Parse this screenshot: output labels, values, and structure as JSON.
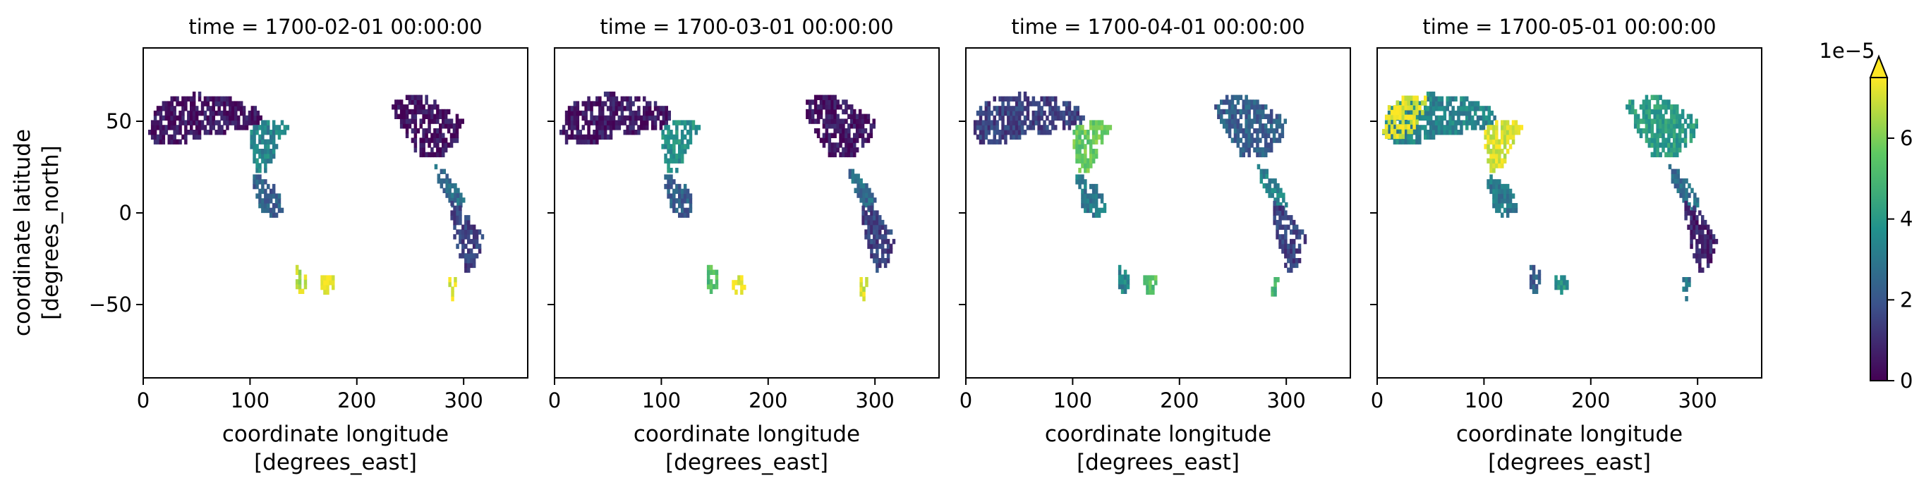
{
  "chart_data": {
    "type": "heatmap",
    "colormap": [
      "#440154",
      "#3b528b",
      "#21918c",
      "#5ec962",
      "#fde725"
    ],
    "panels": [
      {
        "title": "time = 1700-02-01 00:00:00",
        "regions": [
          {
            "name": "europe-asia",
            "level": 0.06
          },
          {
            "name": "north-america",
            "level": 0.05
          },
          {
            "name": "east-asia",
            "level": 0.45
          },
          {
            "name": "south-asia",
            "level": 0.3
          },
          {
            "name": "central-america",
            "level": 0.35
          },
          {
            "name": "south-america",
            "level": 0.2
          },
          {
            "name": "australia",
            "level": 0.9
          },
          {
            "name": "new-zealand",
            "level": 1.0
          },
          {
            "name": "patagonia",
            "level": 0.95
          }
        ]
      },
      {
        "title": "time = 1700-03-01 00:00:00",
        "regions": [
          {
            "name": "europe-asia",
            "level": 0.07
          },
          {
            "name": "north-america",
            "level": 0.06
          },
          {
            "name": "east-asia",
            "level": 0.5
          },
          {
            "name": "south-asia",
            "level": 0.3
          },
          {
            "name": "central-america",
            "level": 0.35
          },
          {
            "name": "south-america",
            "level": 0.2
          },
          {
            "name": "australia",
            "level": 0.7
          },
          {
            "name": "new-zealand",
            "level": 0.97
          },
          {
            "name": "patagonia",
            "level": 0.92
          }
        ]
      },
      {
        "title": "time = 1700-04-01 00:00:00",
        "regions": [
          {
            "name": "europe-asia",
            "level": 0.2
          },
          {
            "name": "north-america",
            "level": 0.3
          },
          {
            "name": "east-asia",
            "level": 0.75
          },
          {
            "name": "south-asia",
            "level": 0.4
          },
          {
            "name": "central-america",
            "level": 0.45
          },
          {
            "name": "south-america",
            "level": 0.2
          },
          {
            "name": "australia",
            "level": 0.45
          },
          {
            "name": "new-zealand",
            "level": 0.7
          },
          {
            "name": "patagonia",
            "level": 0.65
          }
        ]
      },
      {
        "title": "time = 1700-05-01 00:00:00",
        "regions": [
          {
            "name": "europe-asia",
            "level": 0.45
          },
          {
            "name": "europe-west",
            "level": 0.97
          },
          {
            "name": "north-america",
            "level": 0.55
          },
          {
            "name": "east-asia",
            "level": 0.95
          },
          {
            "name": "south-asia",
            "level": 0.4
          },
          {
            "name": "central-america",
            "level": 0.35
          },
          {
            "name": "south-america",
            "level": 0.1
          },
          {
            "name": "australia",
            "level": 0.3
          },
          {
            "name": "new-zealand",
            "level": 0.5
          },
          {
            "name": "patagonia",
            "level": 0.4
          }
        ]
      }
    ],
    "xlabel": [
      "coordinate longitude",
      "[degrees_east]"
    ],
    "ylabel": [
      "coordinate latitude",
      "[degrees_north]"
    ],
    "xlim": [
      0,
      360
    ],
    "ylim": [
      -90,
      90
    ],
    "xticks": [
      0,
      100,
      200,
      300
    ],
    "yticks": [
      50,
      0,
      -50
    ],
    "ytick_labels": [
      "50",
      "0",
      "−50"
    ],
    "colorbar": {
      "vmin": 0,
      "vmax": 7.5,
      "ticks": [
        0,
        2,
        4,
        6
      ],
      "tick_labels": [
        "0",
        "2",
        "4",
        "6"
      ],
      "exponent": "1e−5",
      "extend": "max"
    },
    "grid": false
  }
}
